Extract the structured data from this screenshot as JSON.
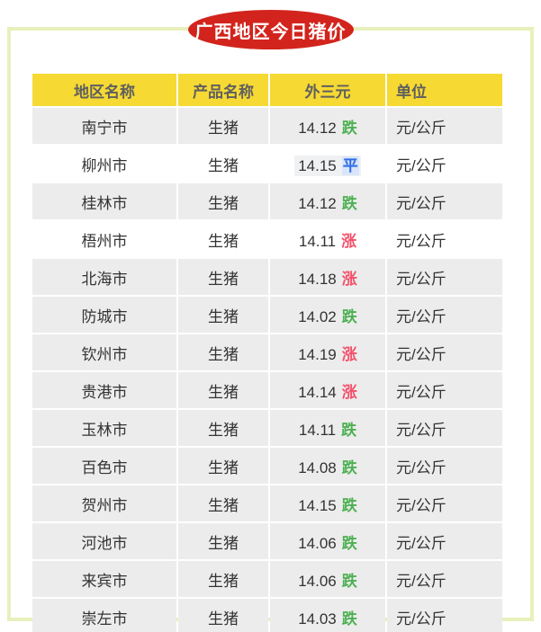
{
  "page": {
    "title": "广西地区今日猪价"
  },
  "colors": {
    "badge_bg": "#d2241c",
    "card_border": "#e9efbc",
    "header_bg": "#f6d933",
    "header_text": "#5f5f5f",
    "row_gray": "#ececec",
    "row_white": "#ffffff",
    "body_text": "#333333",
    "trend_down": "#4db052",
    "trend_up": "#f4506a",
    "trend_flat": "#2e6de5",
    "highlight_bg": "#f0f1f3",
    "highlight_flat_bg": "#d9e5fa"
  },
  "table": {
    "columns": [
      {
        "key": "region",
        "label": "地区名称"
      },
      {
        "key": "product",
        "label": "产品名称"
      },
      {
        "key": "price",
        "label": "外三元"
      },
      {
        "key": "unit",
        "label": "单位"
      }
    ],
    "rows": [
      {
        "region": "南宁市",
        "product": "生猪",
        "price": "14.12",
        "trend": "跌",
        "trend_type": "down",
        "unit": "元/公斤",
        "bg": "gray",
        "highlighted": false
      },
      {
        "region": "柳州市",
        "product": "生猪",
        "price": "14.15",
        "trend": "平",
        "trend_type": "flat",
        "unit": "元/公斤",
        "bg": "white",
        "highlighted": true
      },
      {
        "region": "桂林市",
        "product": "生猪",
        "price": "14.12",
        "trend": "跌",
        "trend_type": "down",
        "unit": "元/公斤",
        "bg": "gray",
        "highlighted": false
      },
      {
        "region": "梧州市",
        "product": "生猪",
        "price": "14.11",
        "trend": "涨",
        "trend_type": "up",
        "unit": "元/公斤",
        "bg": "white",
        "highlighted": false
      },
      {
        "region": "北海市",
        "product": "生猪",
        "price": "14.18",
        "trend": "涨",
        "trend_type": "up",
        "unit": "元/公斤",
        "bg": "gray",
        "highlighted": false
      },
      {
        "region": "防城市",
        "product": "生猪",
        "price": "14.02",
        "trend": "跌",
        "trend_type": "down",
        "unit": "元/公斤",
        "bg": "gray",
        "highlighted": false
      },
      {
        "region": "钦州市",
        "product": "生猪",
        "price": "14.19",
        "trend": "涨",
        "trend_type": "up",
        "unit": "元/公斤",
        "bg": "gray",
        "highlighted": false
      },
      {
        "region": "贵港市",
        "product": "生猪",
        "price": "14.14",
        "trend": "涨",
        "trend_type": "up",
        "unit": "元/公斤",
        "bg": "gray",
        "highlighted": false
      },
      {
        "region": "玉林市",
        "product": "生猪",
        "price": "14.11",
        "trend": "跌",
        "trend_type": "down",
        "unit": "元/公斤",
        "bg": "gray",
        "highlighted": false
      },
      {
        "region": "百色市",
        "product": "生猪",
        "price": "14.08",
        "trend": "跌",
        "trend_type": "down",
        "unit": "元/公斤",
        "bg": "gray",
        "highlighted": false
      },
      {
        "region": "贺州市",
        "product": "生猪",
        "price": "14.15",
        "trend": "跌",
        "trend_type": "down",
        "unit": "元/公斤",
        "bg": "gray",
        "highlighted": false
      },
      {
        "region": "河池市",
        "product": "生猪",
        "price": "14.06",
        "trend": "跌",
        "trend_type": "down",
        "unit": "元/公斤",
        "bg": "gray",
        "highlighted": false
      },
      {
        "region": "来宾市",
        "product": "生猪",
        "price": "14.06",
        "trend": "跌",
        "trend_type": "down",
        "unit": "元/公斤",
        "bg": "gray",
        "highlighted": false
      },
      {
        "region": "崇左市",
        "product": "生猪",
        "price": "14.03",
        "trend": "跌",
        "trend_type": "down",
        "unit": "元/公斤",
        "bg": "gray",
        "highlighted": false
      }
    ]
  },
  "chart_data": {
    "type": "table",
    "title": "广西地区今日猪价",
    "columns": [
      "地区名称",
      "产品名称",
      "外三元",
      "单位"
    ],
    "rows": [
      [
        "南宁市",
        "生猪",
        "14.12 跌",
        "元/公斤"
      ],
      [
        "柳州市",
        "生猪",
        "14.15 平",
        "元/公斤"
      ],
      [
        "桂林市",
        "生猪",
        "14.12 跌",
        "元/公斤"
      ],
      [
        "梧州市",
        "生猪",
        "14.11 涨",
        "元/公斤"
      ],
      [
        "北海市",
        "生猪",
        "14.18 涨",
        "元/公斤"
      ],
      [
        "防城市",
        "生猪",
        "14.02 跌",
        "元/公斤"
      ],
      [
        "钦州市",
        "生猪",
        "14.19 涨",
        "元/公斤"
      ],
      [
        "贵港市",
        "生猪",
        "14.14 涨",
        "元/公斤"
      ],
      [
        "玉林市",
        "生猪",
        "14.11 跌",
        "元/公斤"
      ],
      [
        "百色市",
        "生猪",
        "14.08 跌",
        "元/公斤"
      ],
      [
        "贺州市",
        "生猪",
        "14.15 跌",
        "元/公斤"
      ],
      [
        "河池市",
        "生猪",
        "14.06 跌",
        "元/公斤"
      ],
      [
        "来宾市",
        "生猪",
        "14.06 跌",
        "元/公斤"
      ],
      [
        "崇左市",
        "生猪",
        "14.03 跌",
        "元/公斤"
      ]
    ]
  }
}
